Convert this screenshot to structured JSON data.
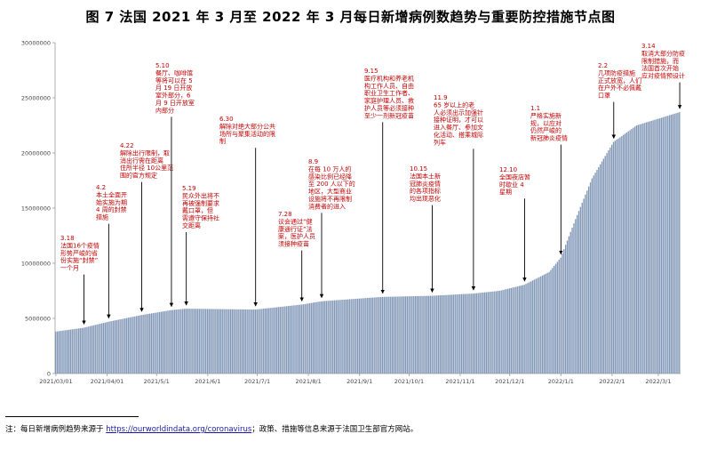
{
  "chart_data": {
    "type": "bar",
    "title": "图 7  法国 2021 年 3 月至 2022 年 3 月每日新增病例数趋势与重要防控措施节点图",
    "xlabel": "",
    "ylabel": "",
    "ylim": [
      0,
      30000000
    ],
    "yticks": [
      0,
      5000000,
      10000000,
      15000000,
      20000000,
      25000000,
      30000000
    ],
    "xtick_labels": [
      "2021/03/01",
      "2021/04/01",
      "2021/5/1",
      "2021/6/1",
      "2021/7/1",
      "2021/8/1",
      "2021/9/1",
      "2021/10/1",
      "2021/11/1",
      "2021/12/1",
      "2022/1/1",
      "2022/2/1",
      "2022/3/1"
    ],
    "x_start": "2021-03-01",
    "x_end": "2022-03-14",
    "anchors": [
      {
        "date": "2021-03-01",
        "value": 3800000
      },
      {
        "date": "2021-03-18",
        "value": 4150000
      },
      {
        "date": "2021-04-02",
        "value": 4700000
      },
      {
        "date": "2021-04-22",
        "value": 5300000
      },
      {
        "date": "2021-05-10",
        "value": 5750000
      },
      {
        "date": "2021-05-19",
        "value": 5880000
      },
      {
        "date": "2021-06-30",
        "value": 5800000
      },
      {
        "date": "2021-07-28",
        "value": 6250000
      },
      {
        "date": "2021-08-09",
        "value": 6550000
      },
      {
        "date": "2021-09-15",
        "value": 6950000
      },
      {
        "date": "2021-10-15",
        "value": 7050000
      },
      {
        "date": "2021-11-09",
        "value": 7250000
      },
      {
        "date": "2021-11-25",
        "value": 7500000
      },
      {
        "date": "2021-12-10",
        "value": 8050000
      },
      {
        "date": "2021-12-25",
        "value": 9200000
      },
      {
        "date": "2022-01-01",
        "value": 10500000
      },
      {
        "date": "2022-01-10",
        "value": 14000000
      },
      {
        "date": "2022-01-20",
        "value": 17700000
      },
      {
        "date": "2022-02-02",
        "value": 21000000
      },
      {
        "date": "2022-02-16",
        "value": 22500000
      },
      {
        "date": "2022-03-01",
        "value": 23100000
      },
      {
        "date": "2022-03-14",
        "value": 23700000
      }
    ],
    "annotations": [
      {
        "date": "2021-03-18",
        "lines": [
          "3.18",
          "法国16个疫情",
          "形势严峻的省",
          "份实施“封禁”",
          "一个月"
        ]
      },
      {
        "date": "2021-04-02",
        "lines": [
          "4.2",
          "本土全面开",
          "始实施为期",
          "4 周的封禁",
          "措施"
        ]
      },
      {
        "date": "2021-04-22",
        "lines": [
          "4.22",
          "解除出行限制，取",
          "消出行需在距离",
          "住所半径 10公里范",
          "围的官方规定"
        ]
      },
      {
        "date": "2021-05-10",
        "lines": [
          "5.10",
          "餐厅、咖啡馆",
          "等将可以在 5",
          "月 19 日开放",
          "室外部分，6",
          "月 9 日开放室",
          "内部分"
        ]
      },
      {
        "date": "2021-05-19",
        "lines": [
          "5.19",
          "民众外出将不",
          "再被强制要求",
          "戴口罩，但",
          "需遵守保持社",
          "交距离"
        ]
      },
      {
        "date": "2021-06-30",
        "lines": [
          "6.30",
          "解除对绝大部分公共",
          "场所与聚集活动的限",
          "制"
        ]
      },
      {
        "date": "2021-07-28",
        "lines": [
          "7.28",
          "议会通过“健",
          "康通行证”法",
          "案，医护人员",
          "须接种疫苗"
        ]
      },
      {
        "date": "2021-08-09",
        "lines": [
          "8.9",
          "在每 10 万人的",
          "感染比例已经降",
          "至 200 人以下的",
          "地区，大型商业",
          "设施将不再限制",
          "消费者的进入"
        ]
      },
      {
        "date": "2021-09-15",
        "lines": [
          "9.15",
          "医疗机构和养老机",
          "构工作人员、自由",
          "职业卫生工作者、",
          "家庭护理人员、救",
          "护人员等必须接种",
          "至少一剂新冠疫苗"
        ]
      },
      {
        "date": "2021-10-15",
        "lines": [
          "10.15",
          "法国本土新",
          "冠肺炎疫情",
          "的各项指标",
          "均出现恶化"
        ]
      },
      {
        "date": "2021-11-09",
        "lines": [
          "11.9",
          "65 岁以上的老",
          "人必须出示加强针",
          "接种证明，才可以",
          "进入餐厅、参加文",
          "化活动、搭乘城际",
          "列车"
        ]
      },
      {
        "date": "2021-12-10",
        "lines": [
          "12.10",
          "全国夜店暂",
          "时歇业 4",
          "星期"
        ]
      },
      {
        "date": "2022-01-01",
        "lines": [
          "1.1",
          "严格实施新",
          "规，以应对",
          "仍然严峻的",
          "新冠肺炎疫情"
        ]
      },
      {
        "date": "2022-02-02",
        "lines": [
          "2.2",
          "几项防疫措施",
          "正式放宽，人们",
          "在户外不必佩戴",
          "口罩"
        ]
      },
      {
        "date": "2022-03-14",
        "lines": [
          "3.14",
          "取消大部分防疫",
          "限制措施，而",
          "法国首次开始",
          "应对疫情预设计"
        ]
      }
    ]
  },
  "footnote": {
    "prefix": "注：每日新增病例趋势来源于 ",
    "link": "https://ourworldindata.org/coronavirus",
    "suffix": "；政策、措施等信息来源于法国卫生部官方网站。"
  },
  "colors": {
    "bar": "#7f95b5",
    "bar_stroke": "#4f6b93",
    "annotation": "#c00000",
    "axis": "#999999",
    "arrow": "#000000"
  }
}
